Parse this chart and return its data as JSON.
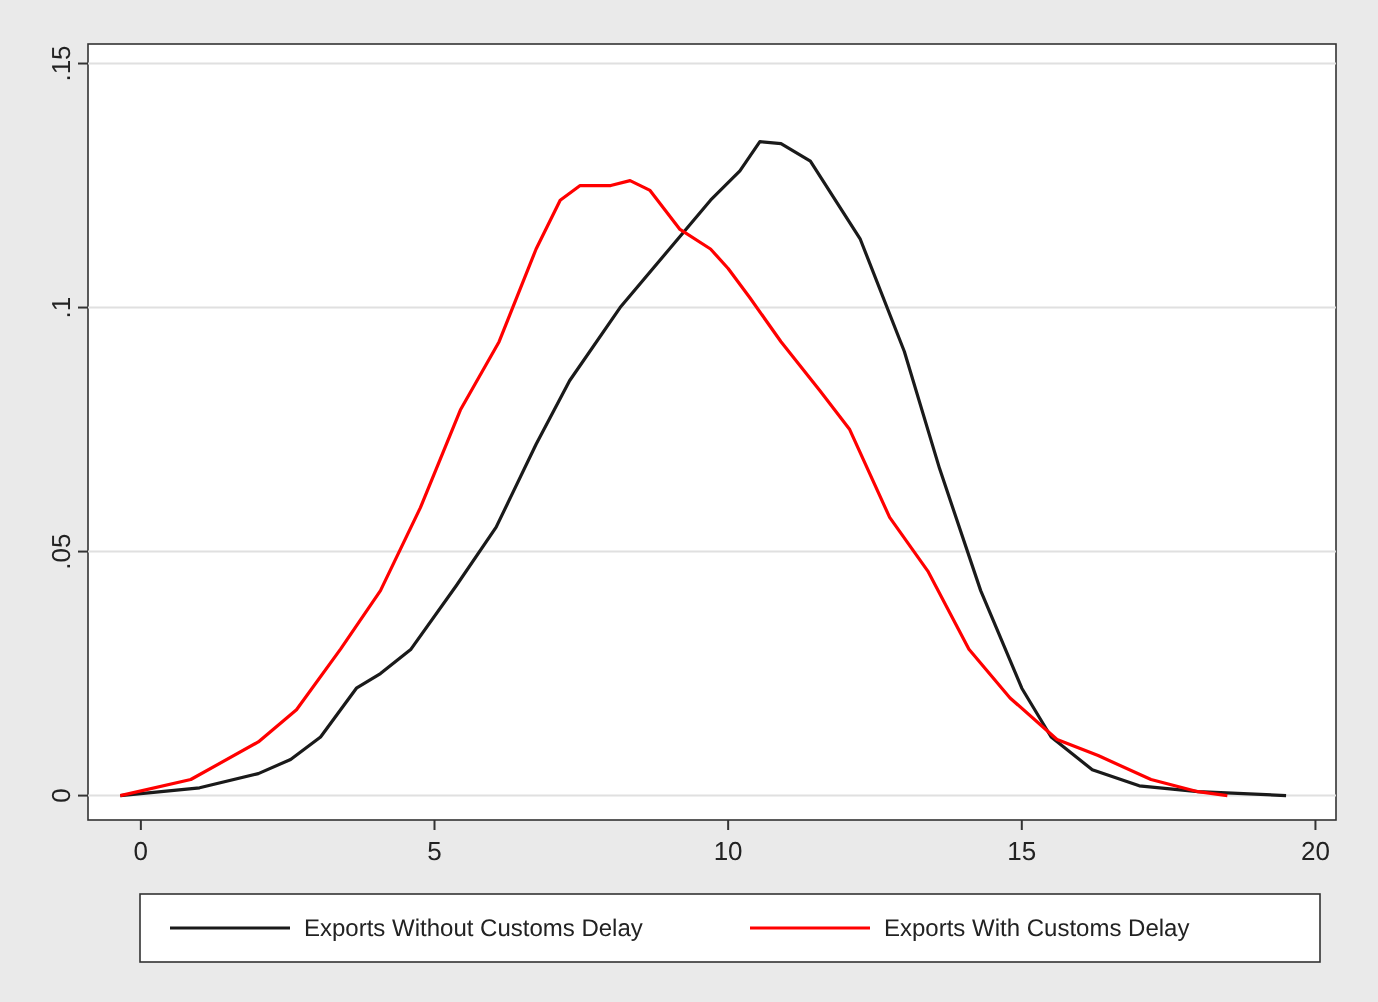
{
  "chart_data": {
    "type": "line",
    "xlim": [
      -0.9,
      20.35
    ],
    "ylim": [
      -0.005,
      0.154
    ],
    "xticks": [
      0,
      5,
      10,
      15,
      20
    ],
    "yticks": [
      {
        "value": 0,
        "label": "0"
      },
      {
        "value": 0.05,
        "label": ".05"
      },
      {
        "value": 0.1,
        "label": ".1"
      },
      {
        "value": 0.15,
        "label": ".15"
      }
    ],
    "grid": "y",
    "legend": "bottom",
    "line_style": "solid",
    "marker": "none",
    "series": [
      {
        "name": "Exports Without Customs Delay",
        "color": "#1a1a1a",
        "x": [
          -0.35,
          1.0,
          2.0,
          2.55,
          3.06,
          3.67,
          4.08,
          4.6,
          5.37,
          6.05,
          6.73,
          7.3,
          8.16,
          9.0,
          9.7,
          10.2,
          10.54,
          10.9,
          11.4,
          12.25,
          13.0,
          13.6,
          14.3,
          15.0,
          15.5,
          16.2,
          17.0,
          18.0,
          19.5
        ],
        "values": [
          0,
          0.0016,
          0.0045,
          0.0074,
          0.012,
          0.022,
          0.025,
          0.03,
          0.043,
          0.055,
          0.072,
          0.085,
          0.1,
          0.112,
          0.122,
          0.128,
          0.134,
          0.1336,
          0.13,
          0.114,
          0.091,
          0.067,
          0.042,
          0.022,
          0.012,
          0.0053,
          0.002,
          0.0008,
          0
        ]
      },
      {
        "name": "Exports With Customs Delay",
        "color": "#ff0000",
        "x": [
          -0.35,
          0.85,
          2.0,
          2.65,
          3.4,
          4.08,
          4.76,
          5.44,
          6.1,
          6.73,
          7.14,
          7.48,
          8.0,
          8.33,
          8.67,
          9.18,
          9.7,
          10.0,
          10.37,
          10.9,
          11.56,
          12.07,
          12.75,
          13.4,
          14.1,
          14.8,
          15.6,
          16.3,
          17.2,
          18.0,
          18.5
        ],
        "values": [
          0,
          0.0033,
          0.011,
          0.0176,
          0.03,
          0.042,
          0.059,
          0.079,
          0.093,
          0.112,
          0.122,
          0.125,
          0.125,
          0.126,
          0.124,
          0.116,
          0.112,
          0.108,
          0.102,
          0.093,
          0.083,
          0.075,
          0.057,
          0.046,
          0.03,
          0.02,
          0.0115,
          0.0082,
          0.0033,
          0.0008,
          0
        ]
      }
    ]
  }
}
